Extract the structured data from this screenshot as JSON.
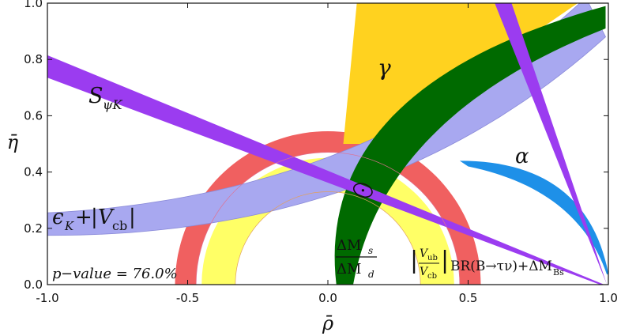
{
  "chart_data": {
    "type": "area",
    "title": "",
    "xlabel": "ρ̄",
    "ylabel": "η̄",
    "xlim": [
      -1.0,
      1.0
    ],
    "ylim": [
      0.0,
      1.0
    ],
    "x_ticks": [
      "-1.0",
      "-0.5",
      "0.0",
      "0.5",
      "1.0"
    ],
    "y_ticks": [
      "0.0",
      "0.2",
      "0.4",
      "0.6",
      "0.8",
      "1.0"
    ],
    "grid": false,
    "legend": "none",
    "fit_point": {
      "rho": 0.125,
      "eta": 0.335
    },
    "annotations": {
      "gamma": "γ",
      "alpha": "α",
      "s_psik_main": "S",
      "s_psik_sub": "ψK",
      "eps_k": "ϵ",
      "eps_k_sub": "K",
      "plus": "+",
      "vcb_v": "V",
      "vcb_sub": "cb",
      "bar": "|",
      "dms_num": "ΔM",
      "dms_num_sub": "s",
      "dmd_den": "ΔM",
      "dmd_den_sub": "d",
      "vub_num": "V",
      "vub_num_sub": "ub",
      "vcb_den": "V",
      "vcb_den_sub": "cb",
      "br_text": "BR(B→τν)+ΔM",
      "br_sub": "Bs",
      "pvalue_label": "p",
      "pvalue_rest": "−value =  76.0%"
    },
    "bands": [
      {
        "name": "γ",
        "color": "#ffd21f"
      },
      {
        "name": "α",
        "color": "#1e90e8"
      },
      {
        "name": "S_ψK",
        "color": "#9b3cf0"
      },
      {
        "name": "ϵ_K+|V_cb|",
        "color": "#a8a8f0"
      },
      {
        "name": "ΔM_s/ΔM_d",
        "color": "#006a00"
      },
      {
        "name": "|V_ub/V_cb|",
        "color": "#f06060"
      },
      {
        "name": "BR(B→τν)+ΔM_Bs",
        "color": "#ffff66"
      }
    ]
  }
}
